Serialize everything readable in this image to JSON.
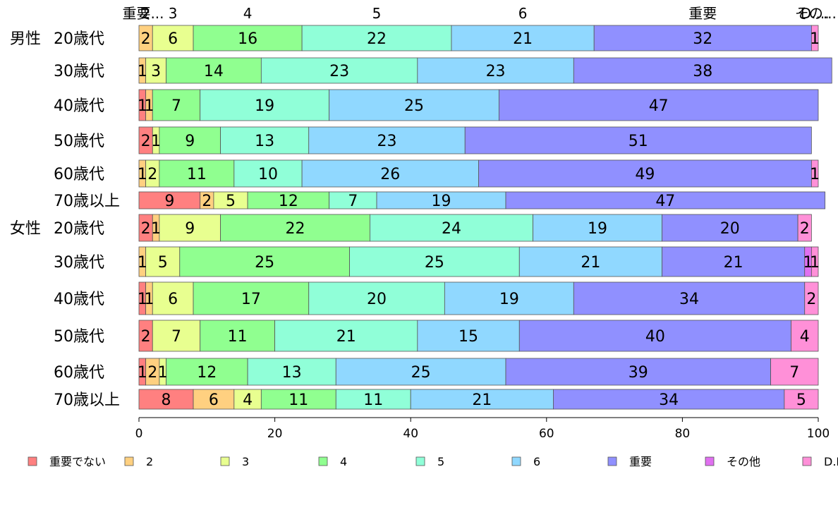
{
  "chart_data": {
    "type": "bar",
    "orientation": "horizontal",
    "stacked": true,
    "xlim": [
      0,
      100
    ],
    "x_ticks": [
      "0",
      "20",
      "40",
      "60",
      "80",
      "100"
    ],
    "groups": [
      "男性",
      "女性"
    ],
    "categories": [
      "20歳代",
      "30歳代",
      "40歳代",
      "50歳代",
      "60歳代",
      "70歳以上",
      "20歳代",
      "30歳代",
      "40歳代",
      "50歳代",
      "60歳代",
      "70歳以上"
    ],
    "series": [
      {
        "name": "重要でない",
        "color": "#FF8080",
        "values": [
          0,
          0,
          1,
          2,
          0,
          9,
          2,
          0,
          1,
          2,
          1,
          8
        ]
      },
      {
        "name": "2",
        "color": "#FFD080",
        "values": [
          2,
          1,
          1,
          0,
          1,
          2,
          1,
          1,
          1,
          0,
          2,
          6
        ]
      },
      {
        "name": "3",
        "color": "#E8FF90",
        "values": [
          6,
          3,
          0,
          1,
          2,
          5,
          9,
          5,
          6,
          7,
          1,
          4
        ]
      },
      {
        "name": "4",
        "color": "#90FF90",
        "values": [
          16,
          14,
          7,
          9,
          11,
          12,
          22,
          25,
          17,
          11,
          12,
          11
        ]
      },
      {
        "name": "5",
        "color": "#90FFD8",
        "values": [
          22,
          23,
          19,
          13,
          10,
          7,
          24,
          25,
          20,
          21,
          13,
          11
        ]
      },
      {
        "name": "6",
        "color": "#90D8FF",
        "values": [
          21,
          23,
          25,
          23,
          26,
          19,
          19,
          21,
          19,
          15,
          25,
          21
        ]
      },
      {
        "name": "重要",
        "color": "#9090FF",
        "values": [
          32,
          38,
          47,
          51,
          49,
          47,
          20,
          21,
          34,
          40,
          39,
          34
        ]
      },
      {
        "name": "その他",
        "color": "#E070F0",
        "values": [
          0,
          0,
          0,
          0,
          0,
          0,
          0,
          1,
          0,
          0,
          0,
          0
        ]
      },
      {
        "name": "D.K.",
        "color": "#FF90D8",
        "values": [
          1,
          0,
          0,
          0,
          1,
          0,
          2,
          1,
          2,
          4,
          7,
          5
        ]
      }
    ],
    "top_labels": [
      "重要でない",
      "2",
      "3",
      "4",
      "5",
      "6",
      "重要",
      "その他",
      "D.K."
    ],
    "legend": {
      "placement": "bottom",
      "entries": [
        "重要でない",
        "2",
        "3",
        "4",
        "5",
        "6",
        "重要",
        "その他",
        "D.K."
      ]
    },
    "grid": false
  }
}
